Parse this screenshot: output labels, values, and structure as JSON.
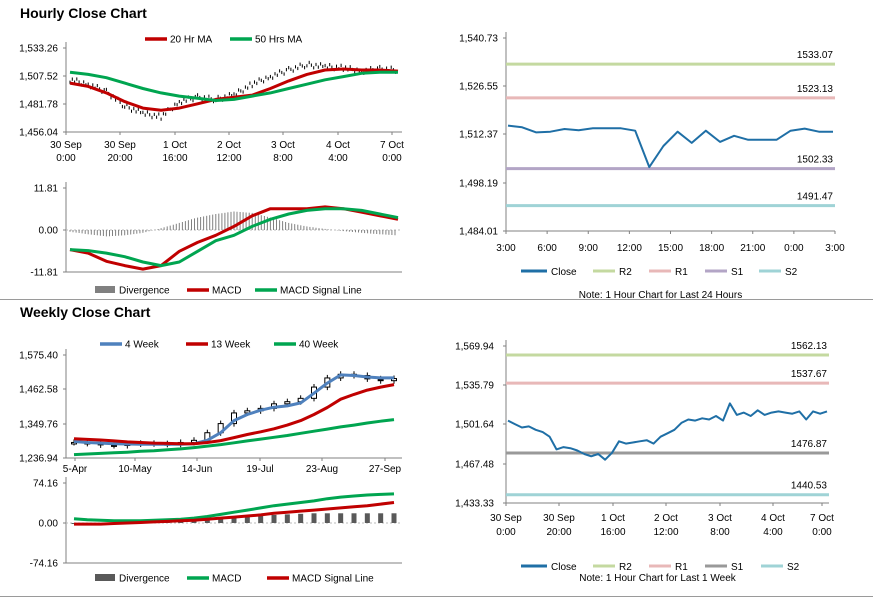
{
  "sections": {
    "hourly_title": "Hourly Close Chart",
    "weekly_title": "Weekly Close Chart"
  },
  "chart_data": [
    {
      "id": "hourly_price",
      "type": "line",
      "ylim": [
        1456.04,
        1533.26
      ],
      "y_ticks": [
        "1,533.26",
        "1,507.52",
        "1,481.78",
        "1,456.04"
      ],
      "x_ticks": [
        [
          "30 Sep",
          "0:00"
        ],
        [
          "30 Sep",
          "20:00"
        ],
        [
          "1 Oct",
          "16:00"
        ],
        [
          "2 Oct",
          "12:00"
        ],
        [
          "3 Oct",
          "8:00"
        ],
        [
          "4 Oct",
          "4:00"
        ],
        [
          "7 Oct",
          "0:00"
        ]
      ],
      "series": [
        {
          "name": "20 Hr MA",
          "color": "#c00000",
          "values": [
            1501,
            1498,
            1492,
            1484,
            1478,
            1476,
            1478,
            1482,
            1486,
            1488,
            1490,
            1496,
            1503,
            1509,
            1513,
            1514,
            1513,
            1513,
            1512
          ]
        },
        {
          "name": "50 Hrs MA",
          "color": "#00a550",
          "values": [
            1511,
            1509,
            1506,
            1501,
            1496,
            1492,
            1489,
            1487,
            1485,
            1486,
            1489,
            1492,
            1496,
            1500,
            1504,
            1507,
            1510,
            1511,
            1511
          ]
        }
      ],
      "close_values": [
        1504,
        1500,
        1493,
        1480,
        1473,
        1470,
        1484,
        1488,
        1486,
        1490,
        1500,
        1507,
        1513,
        1518,
        1516,
        1515,
        1512,
        1514,
        1513
      ],
      "close_color": "#000000"
    },
    {
      "id": "hourly_macd",
      "type": "line",
      "ylim": [
        -11.81,
        11.81
      ],
      "y_ticks": [
        "11.81",
        "0.00",
        "-11.81"
      ],
      "divergence": [
        -0.5,
        -1.2,
        -1.8,
        -1.5,
        -0.8,
        0.5,
        2.0,
        3.5,
        4.5,
        5.2,
        4.8,
        3.5,
        2.0,
        1.0,
        0.3,
        -0.3,
        -0.8,
        -1.2,
        -1.5
      ],
      "series": [
        {
          "name": "Divergence",
          "color": "#808080",
          "values": []
        },
        {
          "name": "MACD",
          "color": "#c00000",
          "values": [
            -5.5,
            -6.5,
            -8.8,
            -10,
            -11,
            -10,
            -6,
            -3.5,
            -1.5,
            1,
            4,
            6,
            6,
            6,
            6.5,
            6,
            5,
            4,
            3
          ]
        },
        {
          "name": "MACD Signal Line",
          "color": "#00a550",
          "values": [
            -5.5,
            -5.8,
            -6.5,
            -7.5,
            -9,
            -10,
            -9,
            -6,
            -3,
            -1.5,
            1,
            3,
            4.5,
            5.5,
            6,
            6,
            5.5,
            4.5,
            3.5
          ]
        }
      ]
    },
    {
      "id": "hourly_levels",
      "type": "line",
      "ylim": [
        1484.01,
        1540.73
      ],
      "y_ticks": [
        "1,540.73",
        "1,526.55",
        "1,512.37",
        "1,498.19",
        "1,484.01"
      ],
      "x_ticks": [
        "3:00",
        "6:00",
        "9:00",
        "12:00",
        "15:00",
        "18:00",
        "21:00",
        "0:00",
        "3:00"
      ],
      "close_values": [
        1515,
        1514.5,
        1513,
        1513.2,
        1514,
        1513.6,
        1514.2,
        1514.2,
        1514.2,
        1513.5,
        1502.8,
        1509,
        1513.2,
        1509.9,
        1513.5,
        1510.2,
        1512,
        1510.8,
        1510.8,
        1510.8,
        1513.5,
        1514.1,
        1513.2,
        1513.2
      ],
      "series": [
        {
          "name": "Close",
          "color": "#1f6fa6",
          "values": []
        },
        {
          "name": "R2",
          "color": "#c4d9a0",
          "level": 1533.07,
          "label": "1533.07"
        },
        {
          "name": "R1",
          "color": "#e8b8b8",
          "level": 1523.13,
          "label": "1523.13"
        },
        {
          "name": "S1",
          "color": "#b3a5c6",
          "level": 1502.33,
          "label": "1502.33"
        },
        {
          "name": "S2",
          "color": "#9fd3d6",
          "level": 1491.47,
          "label": "1491.47"
        }
      ],
      "note": "Note: 1 Hour Chart for Last 24 Hours"
    },
    {
      "id": "weekly_price",
      "type": "line",
      "ylim": [
        1236.94,
        1575.4
      ],
      "y_ticks": [
        "1,575.40",
        "1,462.58",
        "1,349.76",
        "1,236.94"
      ],
      "x_ticks": [
        "5-Apr",
        "10-May",
        "14-Jun",
        "19-Jul",
        "23-Aug",
        "27-Sep"
      ],
      "series": [
        {
          "name": "4 Week",
          "color": "#4f81bd",
          "values": [
            1291,
            1288,
            1286,
            1284,
            1283,
            1282,
            1282,
            1282,
            1282,
            1284,
            1295,
            1320,
            1360,
            1380,
            1394,
            1404,
            1408,
            1418,
            1450,
            1483,
            1510,
            1508,
            1503,
            1500,
            1500
          ]
        },
        {
          "name": "13 Week",
          "color": "#c00000",
          "values": [
            1300,
            1298,
            1296,
            1293,
            1290,
            1288,
            1286,
            1285,
            1284,
            1284,
            1288,
            1294,
            1304,
            1314,
            1323,
            1333,
            1345,
            1360,
            1380,
            1403,
            1430,
            1446,
            1460,
            1470,
            1478
          ]
        },
        {
          "name": "40 Week",
          "color": "#00a550",
          "values": [
            1248,
            1250,
            1252,
            1254,
            1256,
            1259,
            1261,
            1264,
            1267,
            1271,
            1276,
            1281,
            1287,
            1293,
            1299,
            1305,
            1311,
            1318,
            1325,
            1332,
            1339,
            1345,
            1352,
            1358,
            1363
          ]
        }
      ],
      "close_values": [
        1288,
        1285,
        1280,
        1278,
        1283,
        1285,
        1284,
        1282,
        1288,
        1295,
        1320,
        1350,
        1385,
        1392,
        1400,
        1415,
        1422,
        1433,
        1470,
        1500,
        1512,
        1508,
        1497,
        1491,
        1498
      ],
      "close_color": "#000000"
    },
    {
      "id": "weekly_macd",
      "type": "line",
      "ylim": [
        -74.16,
        74.16
      ],
      "y_ticks": [
        "74.16",
        "0.00",
        "-74.16"
      ],
      "divergence": [
        -1,
        -1,
        -1,
        0,
        1,
        2,
        3,
        4,
        5,
        6,
        8,
        10,
        11,
        13,
        14,
        15,
        16,
        17,
        18,
        18,
        18,
        18,
        18,
        18,
        18
      ],
      "series": [
        {
          "name": "Divergence",
          "color": "#595959",
          "values": []
        },
        {
          "name": "MACD",
          "color": "#00a550",
          "values": [
            8,
            6,
            5,
            4,
            4,
            4,
            5,
            6,
            7,
            9,
            12,
            16,
            20,
            24,
            28,
            32,
            35,
            38,
            41,
            45,
            48,
            50,
            52,
            53,
            54
          ]
        },
        {
          "name": "MACD Signal Line",
          "color": "#c00000",
          "values": [
            -2,
            -2,
            -2,
            -1,
            0,
            1,
            2,
            3,
            4,
            5,
            7,
            9,
            11,
            13,
            15,
            18,
            20,
            22,
            24,
            26,
            28,
            30,
            32,
            35,
            38
          ]
        }
      ]
    },
    {
      "id": "weekly_levels",
      "type": "line",
      "ylim": [
        1433.33,
        1569.94
      ],
      "y_ticks": [
        "1,569.94",
        "1,535.79",
        "1,501.64",
        "1,467.48",
        "1,433.33"
      ],
      "x_ticks": [
        [
          "30 Sep",
          "0:00"
        ],
        [
          "30 Sep",
          "20:00"
        ],
        [
          "1 Oct",
          "16:00"
        ],
        [
          "2 Oct",
          "12:00"
        ],
        [
          "3 Oct",
          "8:00"
        ],
        [
          "4 Oct",
          "4:00"
        ],
        [
          "7 Oct",
          "0:00"
        ]
      ],
      "close_values": [
        1505,
        1502,
        1499,
        1500,
        1497,
        1495,
        1491,
        1480,
        1482,
        1481,
        1479,
        1476,
        1474,
        1476,
        1471,
        1477,
        1487,
        1485,
        1486,
        1487,
        1488,
        1485,
        1491,
        1494,
        1497,
        1503,
        1506,
        1505,
        1507,
        1506,
        1509,
        1505,
        1520,
        1510,
        1512,
        1509,
        1514,
        1510,
        1512,
        1513,
        1512,
        1511,
        1513,
        1506,
        1513,
        1511,
        1513
      ],
      "series": [
        {
          "name": "Close",
          "color": "#1f6fa6",
          "values": []
        },
        {
          "name": "R2",
          "color": "#c4d9a0",
          "level": 1562.13,
          "label": "1562.13"
        },
        {
          "name": "R1",
          "color": "#e8b8b8",
          "level": 1537.67,
          "label": "1537.67"
        },
        {
          "name": "S1",
          "color": "#999999",
          "level": 1476.87,
          "label": "1476.87"
        },
        {
          "name": "S2",
          "color": "#9fd3d6",
          "level": 1440.53,
          "label": "1440.53"
        }
      ],
      "note": "Note: 1 Hour Chart for Last 1 Week"
    }
  ]
}
